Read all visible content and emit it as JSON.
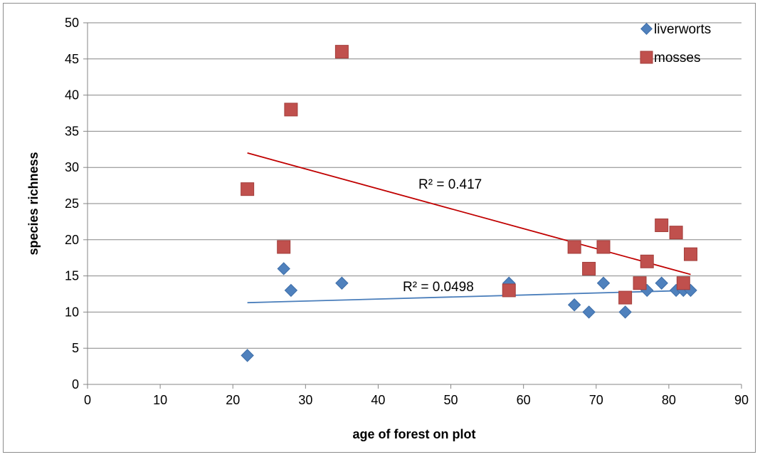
{
  "chart_data": {
    "type": "scatter",
    "xlabel": "age of forest on plot",
    "ylabel": "species richness",
    "xlim": [
      0,
      90
    ],
    "ylim": [
      0,
      50
    ],
    "xticks": [
      "0",
      "10",
      "20",
      "30",
      "40",
      "50",
      "60",
      "70",
      "80",
      "90"
    ],
    "yticks": [
      "0",
      "5",
      "10",
      "15",
      "20",
      "25",
      "30",
      "35",
      "40",
      "45",
      "50"
    ],
    "grid": "horizontal",
    "legend_position": "top-right",
    "series": [
      {
        "name": "liverworts",
        "color": "#4f81bd",
        "marker": "diamond",
        "points": [
          [
            22,
            4
          ],
          [
            27,
            16
          ],
          [
            28,
            13
          ],
          [
            35,
            14
          ],
          [
            58,
            14
          ],
          [
            67,
            11
          ],
          [
            69,
            10
          ],
          [
            71,
            14
          ],
          [
            74,
            10
          ],
          [
            76,
            14
          ],
          [
            77,
            13
          ],
          [
            79,
            14
          ],
          [
            81,
            13
          ],
          [
            82,
            13
          ],
          [
            83,
            13
          ]
        ],
        "trendline": {
          "x": [
            22,
            83
          ],
          "y": [
            11.3,
            13.0
          ],
          "color": "#4a7ebb",
          "r2_label": "R² = 0.0498"
        }
      },
      {
        "name": "mosses",
        "color": "#c0504d",
        "marker": "square",
        "points": [
          [
            22,
            27
          ],
          [
            27,
            19
          ],
          [
            28,
            38
          ],
          [
            35,
            46
          ],
          [
            58,
            13
          ],
          [
            67,
            19
          ],
          [
            69,
            16
          ],
          [
            71,
            19
          ],
          [
            74,
            12
          ],
          [
            76,
            14
          ],
          [
            77,
            17
          ],
          [
            79,
            22
          ],
          [
            81,
            21
          ],
          [
            82,
            14
          ],
          [
            83,
            18
          ]
        ],
        "trendline": {
          "x": [
            22,
            83
          ],
          "y": [
            32.0,
            15.2
          ],
          "color": "#c00000",
          "r2_label": "R² = 0.417"
        }
      }
    ]
  }
}
